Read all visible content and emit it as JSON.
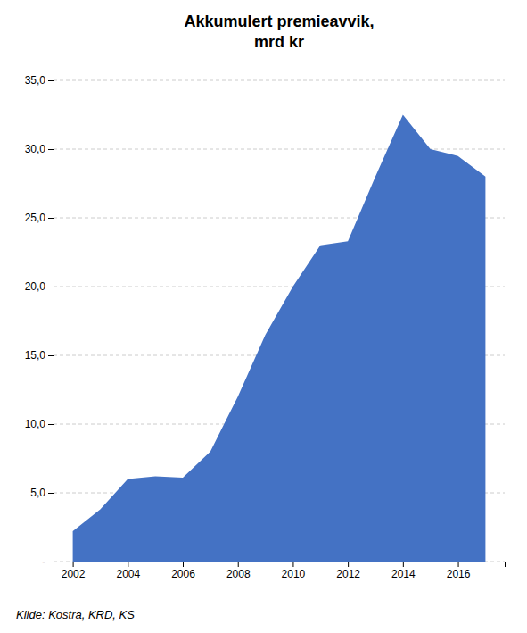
{
  "chart_data": {
    "type": "area",
    "title": "Akkumulert premieavvik,\nmrd kr",
    "x": [
      2002,
      2003,
      2004,
      2005,
      2006,
      2007,
      2008,
      2009,
      2010,
      2011,
      2012,
      2013,
      2014,
      2015,
      2016,
      2017
    ],
    "values": [
      2.2,
      3.8,
      6.0,
      6.2,
      6.1,
      8.0,
      12.0,
      16.5,
      20.0,
      23.0,
      23.3,
      28.0,
      32.5,
      30.0,
      29.5,
      28.0
    ],
    "color": "#4472C4",
    "xlim": [
      2001.3,
      2017.7
    ],
    "xticks": [
      2002,
      2004,
      2006,
      2008,
      2010,
      2012,
      2014,
      2016
    ],
    "ylim": [
      0,
      35
    ],
    "yticks": [
      {
        "value": 0,
        "label": "-"
      },
      {
        "value": 5,
        "label": "5,0"
      },
      {
        "value": 10,
        "label": "10,0"
      },
      {
        "value": 15,
        "label": "15,0"
      },
      {
        "value": 20,
        "label": "20,0"
      },
      {
        "value": 25,
        "label": "25,0"
      },
      {
        "value": 30,
        "label": "30,0"
      },
      {
        "value": 35,
        "label": "35,0"
      }
    ],
    "grid": true,
    "annotations": [
      "Kilde: Kostra, KRD, KS"
    ]
  }
}
